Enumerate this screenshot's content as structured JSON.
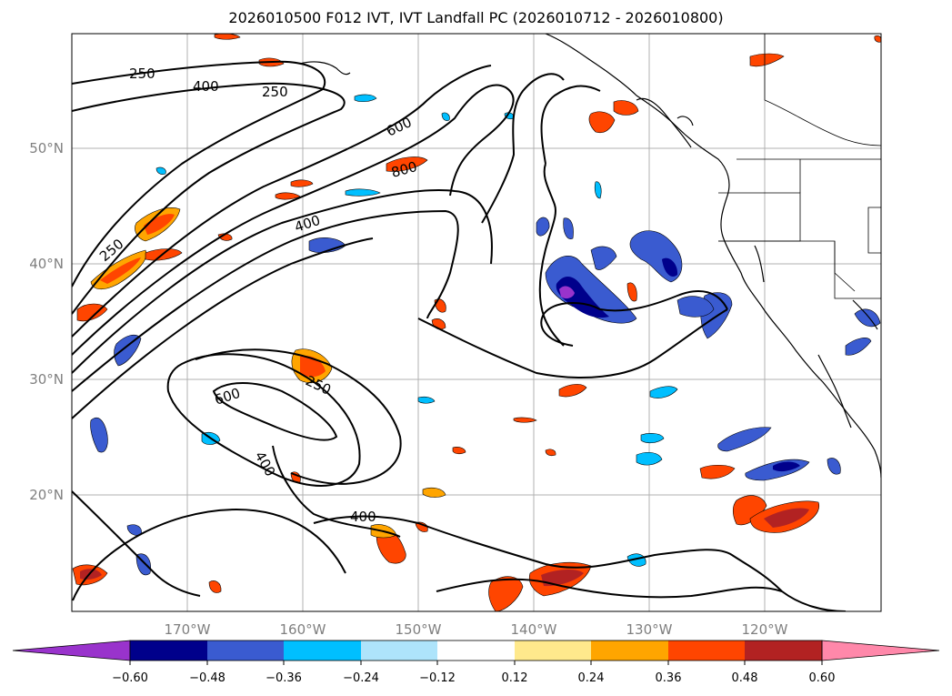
{
  "title": "2026010500 F012 IVT, IVT Landfall PC (2026010712 - 2026010800)",
  "map": {
    "lat_labels": [
      {
        "text": "50°N",
        "lat": 50
      },
      {
        "text": "40°N",
        "lat": 40
      },
      {
        "text": "30°N",
        "lat": 30
      },
      {
        "text": "20°N",
        "lat": 20
      }
    ],
    "lon_labels": [
      {
        "text": "170°W",
        "lon": -170
      },
      {
        "text": "160°W",
        "lon": -160
      },
      {
        "text": "150°W",
        "lon": -150
      },
      {
        "text": "140°W",
        "lon": -140
      },
      {
        "text": "130°W",
        "lon": -130
      },
      {
        "text": "120°W",
        "lon": -120
      }
    ],
    "contour_labels": [
      "250",
      "400",
      "250",
      "600",
      "800",
      "400",
      "250",
      "600",
      "250",
      "400",
      "400"
    ],
    "extent": {
      "lon": [
        -180,
        -110
      ],
      "lat": [
        10,
        60
      ]
    },
    "gridlines": true,
    "coastline_color": "#000000",
    "contour_color": "#000000"
  },
  "colorbar": {
    "ticks": [
      "−0.60",
      "−0.48",
      "−0.36",
      "−0.24",
      "−0.12",
      "0.12",
      "0.24",
      "0.36",
      "0.48",
      "0.60"
    ],
    "colors": [
      "#9933cc",
      "#00008b",
      "#3a5bd0",
      "#00bfff",
      "#aee4fb",
      "#ffffff",
      "#ffe98c",
      "#ffa500",
      "#ff4500",
      "#b22222",
      "#ff88aa",
      "#ff88aa"
    ],
    "extend": "both"
  }
}
